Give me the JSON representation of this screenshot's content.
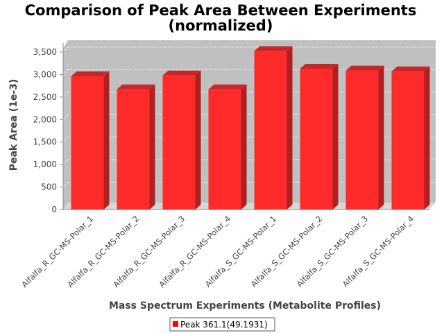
{
  "chart_data": {
    "type": "bar",
    "title": "Comparison of Peak Area Between Experiments",
    "subtitle": "(normalized)",
    "xlabel": "Mass Spectrum Experiments (Metabolite Profiles)",
    "ylabel": "Peak Area (1e-3)",
    "ylim": [
      0,
      3700
    ],
    "yticks": [
      "0",
      "500",
      "1,000",
      "1,500",
      "2,000",
      "2,500",
      "3,000",
      "3,500"
    ],
    "grid": true,
    "legend_position": "bottom",
    "categories": [
      "Alfalfa_R_GC-MS-Polar_1",
      "Alfalfa_R_GC-MS-Polar_2",
      "Alfalfa_R_GC-MS-Polar_3",
      "Alfalfa_R_GC-MS-Polar_4",
      "Alfalfa_S_GC-MS-Polar_1",
      "Alfalfa_S_GC-MS-Polar_2",
      "Alfalfa_S_GC-MS-Polar_3",
      "Alfalfa_S_GC-MS-Polar_4"
    ],
    "series": [
      {
        "name": "Peak 361.1(49.1931)",
        "color": "#ff2a2a",
        "values": [
          2960,
          2670,
          2980,
          2670,
          3520,
          3130,
          3090,
          3070
        ]
      }
    ]
  }
}
